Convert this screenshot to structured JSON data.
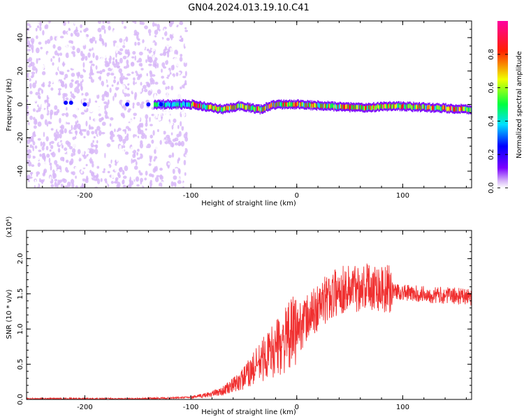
{
  "figure_title": "GN04.2024.013.19.10.C41",
  "chart_data": [
    {
      "type": "heatmap",
      "xlabel": "Height of straight line (km)",
      "ylabel": "Frequency (Hz)",
      "xlim": [
        -255,
        165
      ],
      "ylim": [
        -50,
        50
      ],
      "x_ticks": [
        -200,
        -100,
        0,
        100
      ],
      "y_ticks": [
        -40,
        -20,
        0,
        20,
        40
      ],
      "colorbar": {
        "label": "Normalized spectral amplitude",
        "range": [
          0,
          1
        ],
        "ticks": [
          0.0,
          0.2,
          0.4,
          0.6,
          0.8
        ],
        "colormap": [
          "#ffffff",
          "#d8b8f8",
          "#7a00ff",
          "#0000ff",
          "#00e0ff",
          "#00ff40",
          "#f0ff00",
          "#ff2000",
          "#ff00a0"
        ]
      },
      "features": {
        "noise_region_x": [
          -255,
          -110
        ],
        "ridge_start_x": -135,
        "ridge_center_frequency": [
          [
            -135,
            0
          ],
          [
            -100,
            0
          ],
          [
            -80,
            -2
          ],
          [
            -70,
            -3
          ],
          [
            -55,
            -1
          ],
          [
            -35,
            -3
          ],
          [
            -20,
            0
          ],
          [
            0,
            0
          ],
          [
            30,
            -1
          ],
          [
            60,
            -2
          ],
          [
            90,
            -1
          ],
          [
            130,
            -2
          ],
          [
            165,
            -3
          ]
        ]
      }
    },
    {
      "type": "line",
      "xlabel": "Height of straight line (km)",
      "ylabel": "SNR (10 * v/v)",
      "y_multiplier": "(x10⁴)",
      "xlim": [
        -255,
        165
      ],
      "ylim": [
        0,
        2.4
      ],
      "x_ticks": [
        -200,
        -100,
        0,
        100
      ],
      "y_ticks": [
        0.0,
        0.5,
        1.0,
        1.5,
        2.0
      ],
      "series": [
        {
          "color": "#f03030",
          "x": [
            -255,
            -200,
            -150,
            -120,
            -100,
            -90,
            -80,
            -70,
            -60,
            -50,
            -40,
            -30,
            -20,
            -10,
            0,
            10,
            20,
            30,
            40,
            50,
            60,
            70,
            80,
            90,
            100,
            110,
            120,
            130,
            140,
            150,
            165
          ],
          "y": [
            0.01,
            0.01,
            0.01,
            0.02,
            0.03,
            0.05,
            0.08,
            0.12,
            0.2,
            0.3,
            0.45,
            0.6,
            0.72,
            0.85,
            1.0,
            1.15,
            1.3,
            1.45,
            1.55,
            1.58,
            1.6,
            1.62,
            1.58,
            1.55,
            1.52,
            1.5,
            1.5,
            1.48,
            1.48,
            1.47,
            1.45
          ]
        }
      ]
    }
  ]
}
